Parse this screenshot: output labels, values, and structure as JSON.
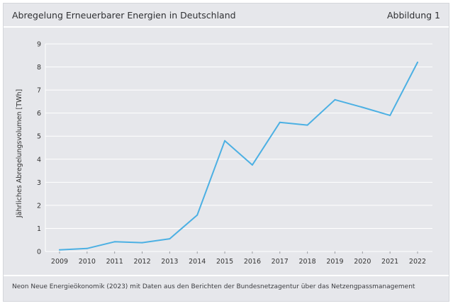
{
  "header": {
    "title": "Abregelung Erneuerbarer Energien in Deutschland",
    "figure_label": "Abbildung 1"
  },
  "footer": {
    "source": "Neon Neue Energieökonomik (2023) mit Daten aus den Berichten der Bundesnetzagentur über das Netzengpassmanagement"
  },
  "colors": {
    "line": "#4cb0e3",
    "grid": "#ffffff",
    "background": "#e6e7eb"
  },
  "chart_data": {
    "type": "line",
    "title": "Abregelung Erneuerbarer Energien in Deutschland",
    "xlabel": "",
    "ylabel": "Jährliches Abregelungsvolumen [TWh]",
    "ylim": [
      0,
      9
    ],
    "yticks": [
      "0",
      "1",
      "2",
      "3",
      "4",
      "5",
      "6",
      "7",
      "8",
      "9"
    ],
    "categories": [
      "2009",
      "2010",
      "2011",
      "2012",
      "2013",
      "2014",
      "2015",
      "2016",
      "2017",
      "2018",
      "2019",
      "2020",
      "2021",
      "2022"
    ],
    "series": [
      {
        "name": "Abregelungsvolumen",
        "values": [
          0.07,
          0.13,
          0.42,
          0.38,
          0.55,
          1.58,
          4.8,
          3.75,
          5.6,
          5.48,
          6.58,
          6.25,
          5.9,
          8.2
        ]
      }
    ],
    "grid": true
  }
}
